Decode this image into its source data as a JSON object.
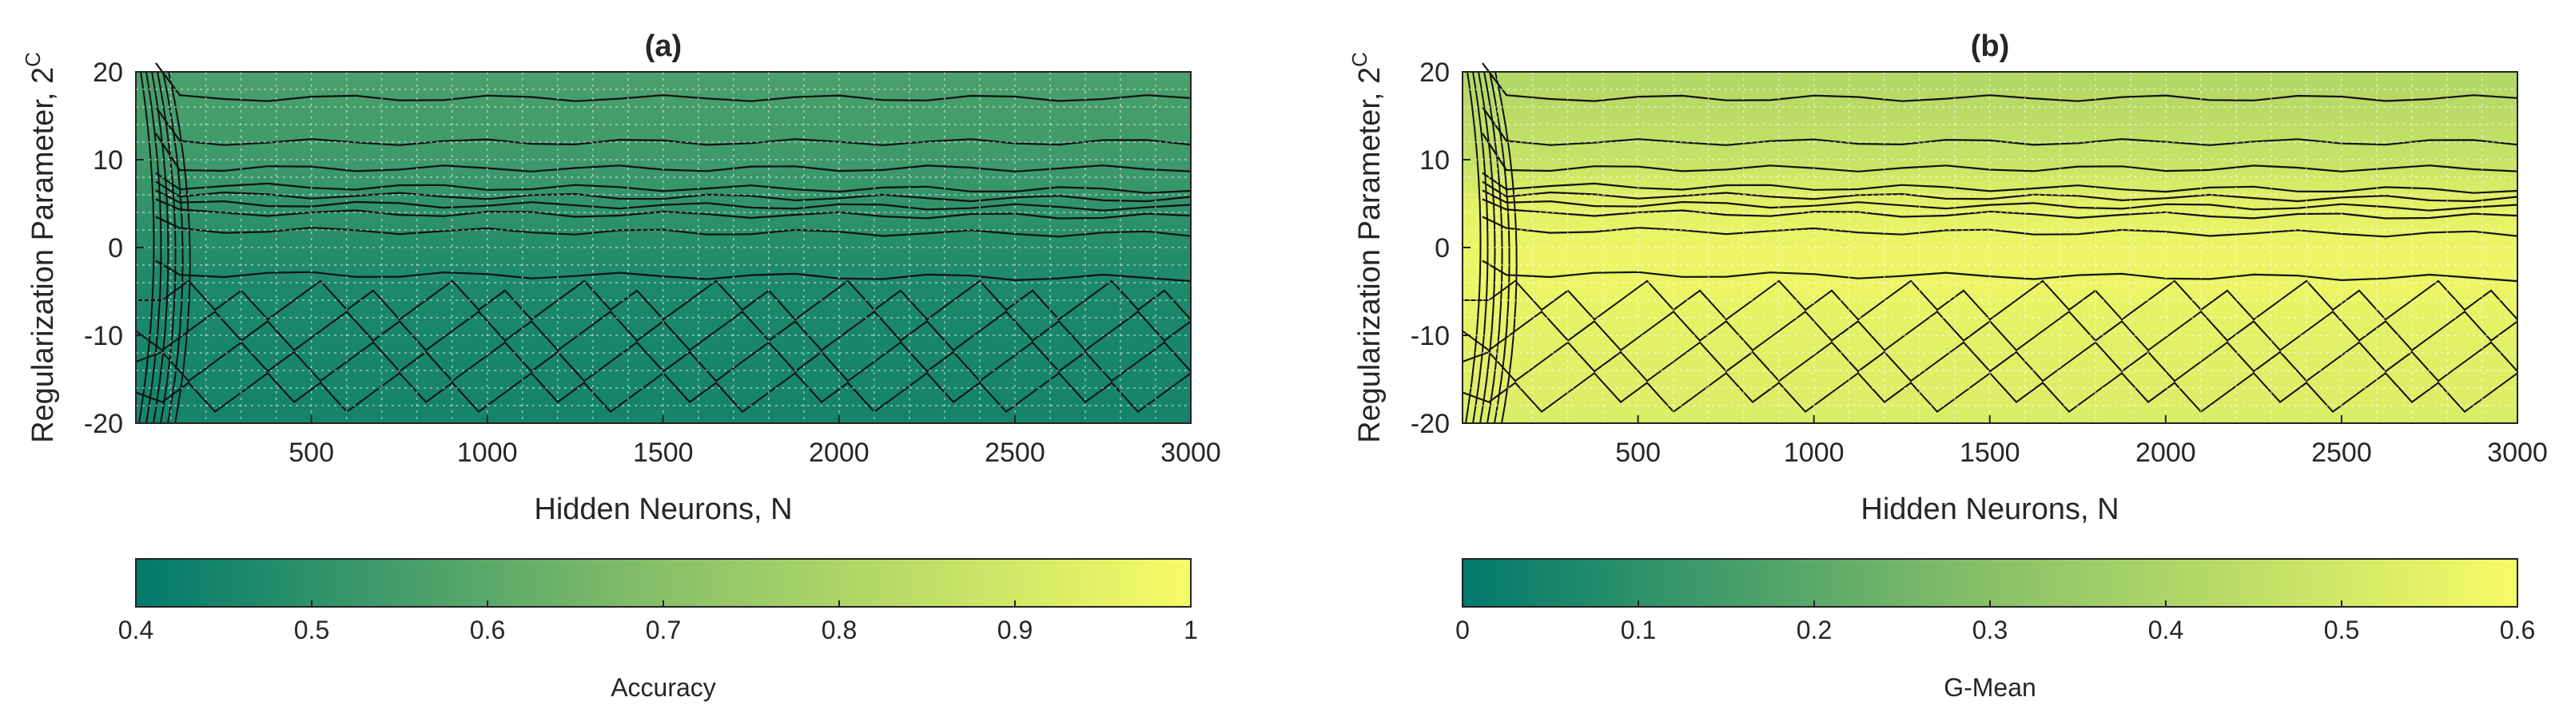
{
  "chart_data": [
    {
      "type": "heatmap",
      "title": "(a)",
      "xlabel": "Hidden Neurons, N",
      "ylabel": "Regularization Parameter, 2",
      "ylabel_superscript": "C",
      "xlim": [
        1,
        3000
      ],
      "ylim": [
        -20,
        20
      ],
      "xticks": [
        500,
        1000,
        1500,
        2000,
        2500,
        3000
      ],
      "yticks": [
        -20,
        -10,
        0,
        10,
        20
      ],
      "grid": true,
      "contour_lines": true,
      "value_rows": {
        "y": [
          20,
          10,
          5,
          0,
          -5,
          -10,
          -15,
          -20
        ],
        "values": [
          0.58,
          0.55,
          0.52,
          0.49,
          0.47,
          0.46,
          0.455,
          0.45
        ]
      },
      "colorbar": {
        "label": "Accuracy",
        "range": [
          0.4,
          1
        ],
        "ticks": [
          "0.4",
          "0.5",
          "0.6",
          "0.7",
          "0.8",
          "0.9",
          "1"
        ],
        "colors": [
          "#00796b",
          "#f7fc66"
        ]
      }
    },
    {
      "type": "heatmap",
      "title": "(b)",
      "xlabel": "Hidden Neurons, N",
      "ylabel": "Regularization Parameter, 2",
      "ylabel_superscript": "C",
      "xlim": [
        1,
        3000
      ],
      "ylim": [
        -20,
        20
      ],
      "xticks": [
        500,
        1000,
        1500,
        2000,
        2500,
        3000
      ],
      "yticks": [
        -20,
        -10,
        0,
        10,
        20
      ],
      "grid": true,
      "contour_lines": true,
      "value_rows": {
        "y": [
          20,
          10,
          5,
          0,
          -5,
          -10,
          -15,
          -20
        ],
        "values": [
          0.43,
          0.48,
          0.55,
          0.57,
          0.57,
          0.55,
          0.54,
          0.53
        ]
      },
      "colorbar": {
        "label": "G-Mean",
        "range": [
          0,
          0.6
        ],
        "ticks": [
          "0",
          "0.1",
          "0.2",
          "0.3",
          "0.4",
          "0.5",
          "0.6"
        ],
        "colors": [
          "#00796b",
          "#f7fc66"
        ]
      }
    }
  ]
}
